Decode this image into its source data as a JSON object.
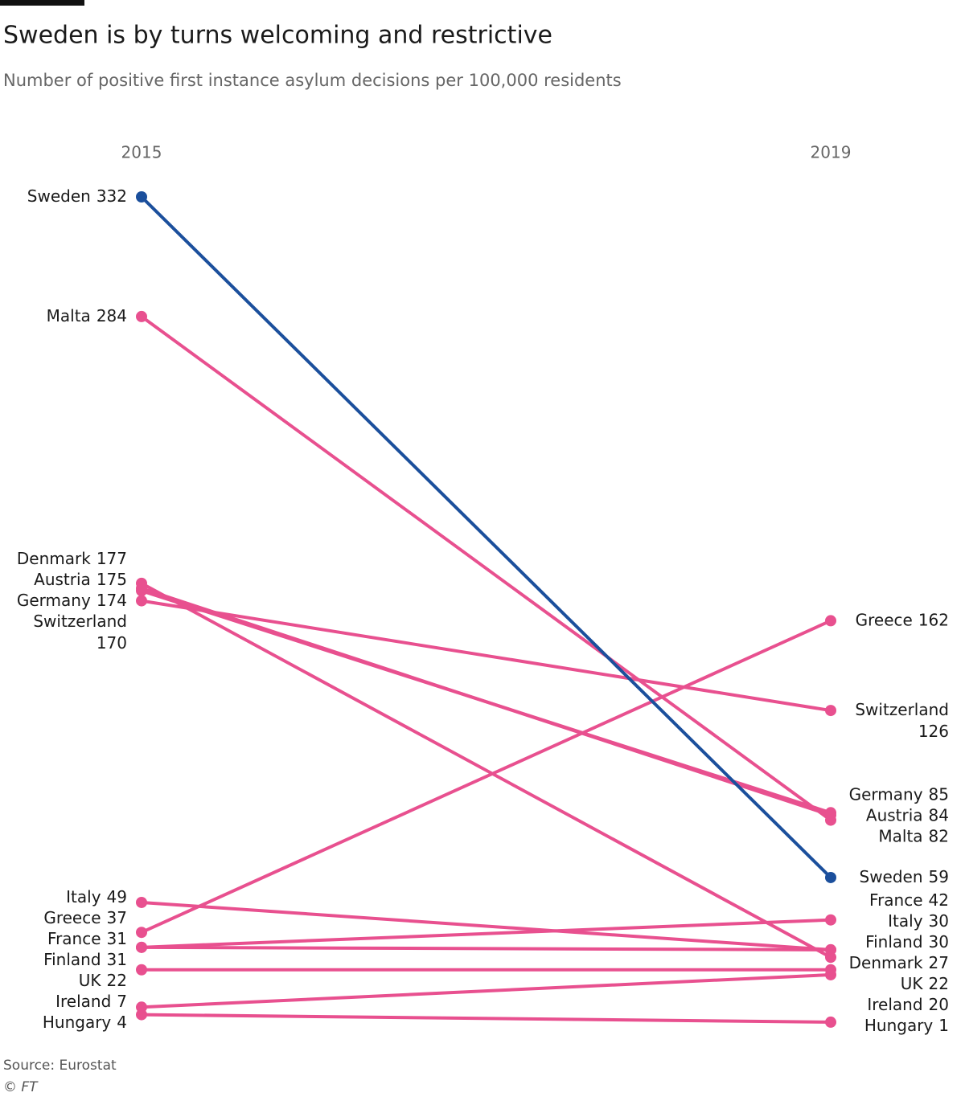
{
  "chart_data": {
    "type": "slope",
    "title": "Sweden is by turns welcoming and restrictive",
    "subtitle": "Number of positive first instance asylum decisions per 100,000 residents",
    "categories": [
      "2015",
      "2019"
    ],
    "series": [
      {
        "name": "Sweden",
        "color": "#1b4f9c",
        "values": [
          332,
          59
        ]
      },
      {
        "name": "Malta",
        "color": "#e8508f",
        "values": [
          284,
          82
        ]
      },
      {
        "name": "Denmark",
        "color": "#e8508f",
        "values": [
          177,
          27
        ]
      },
      {
        "name": "Austria",
        "color": "#e8508f",
        "values": [
          175,
          84
        ]
      },
      {
        "name": "Germany",
        "color": "#e8508f",
        "values": [
          174,
          85
        ]
      },
      {
        "name": "Switzerland",
        "color": "#e8508f",
        "values": [
          170,
          126
        ]
      },
      {
        "name": "Italy",
        "color": "#e8508f",
        "values": [
          49,
          30
        ]
      },
      {
        "name": "Greece",
        "color": "#e8508f",
        "values": [
          37,
          162
        ]
      },
      {
        "name": "France",
        "color": "#e8508f",
        "values": [
          31,
          42
        ]
      },
      {
        "name": "Finland",
        "color": "#e8508f",
        "values": [
          31,
          30
        ]
      },
      {
        "name": "UK",
        "color": "#e8508f",
        "values": [
          22,
          22
        ]
      },
      {
        "name": "Ireland",
        "color": "#e8508f",
        "values": [
          7,
          20
        ]
      },
      {
        "name": "Hungary",
        "color": "#e8508f",
        "values": [
          4,
          1
        ]
      }
    ],
    "source": "Source: Eurostat",
    "credit": "© FT"
  }
}
